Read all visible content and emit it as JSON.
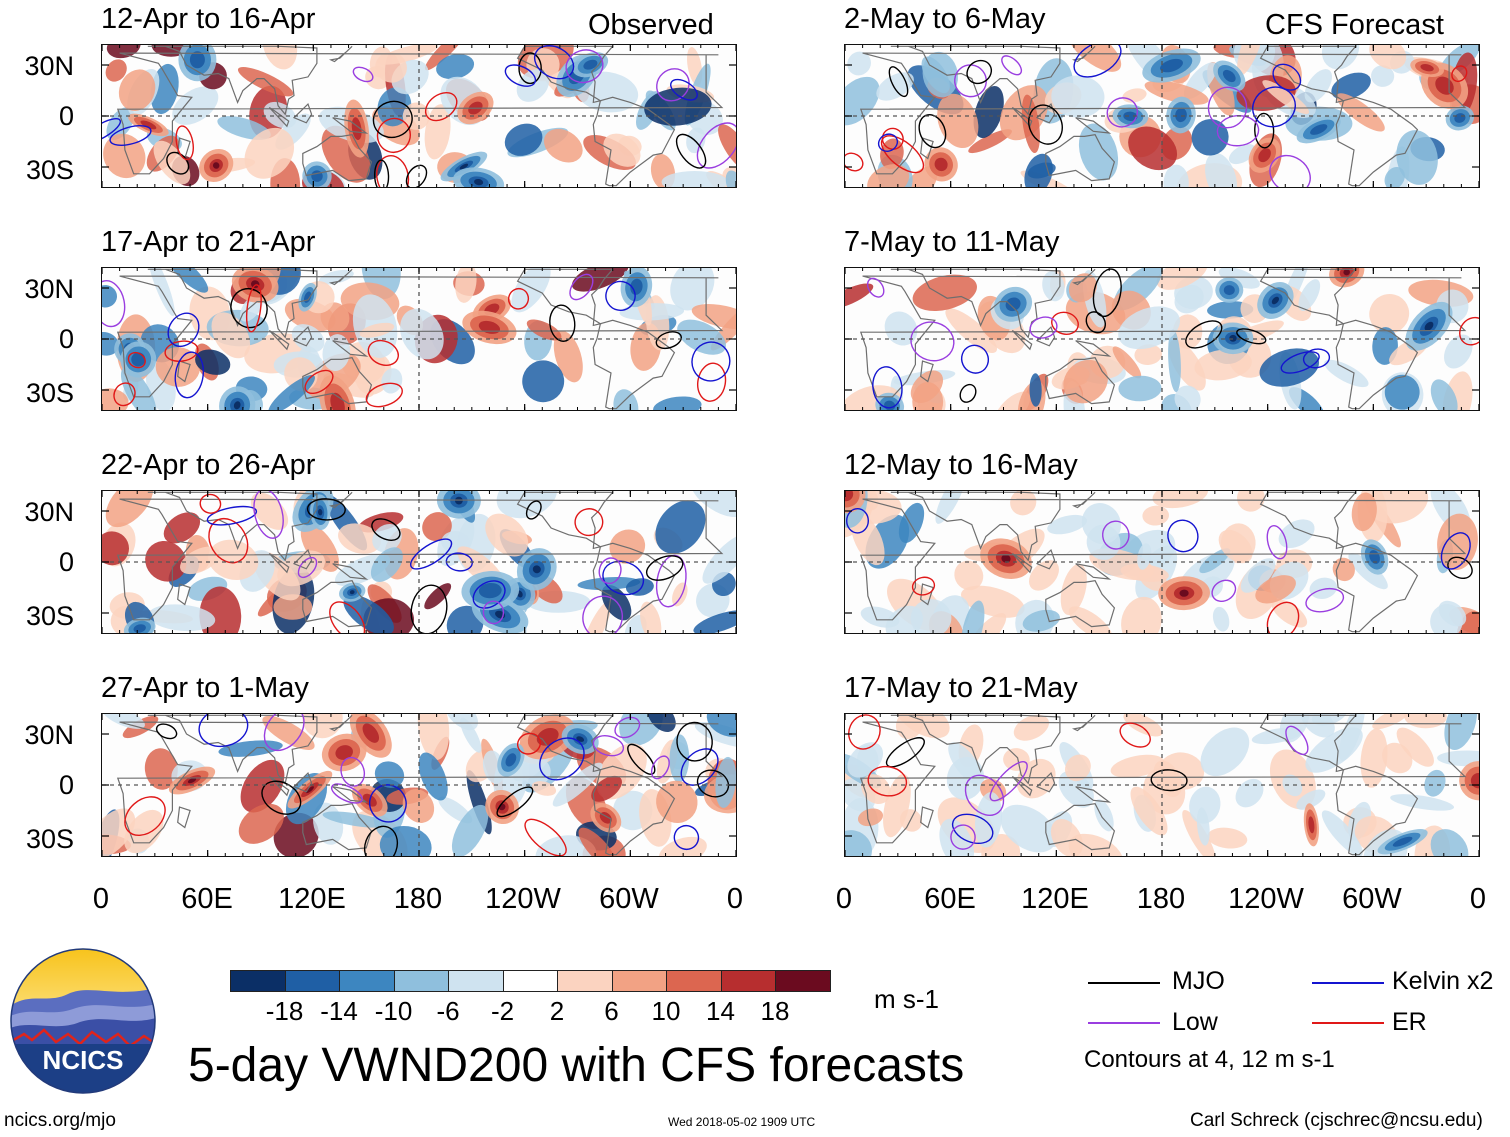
{
  "left_header": "Observed",
  "right_header": "CFS Forecast",
  "observed_panels": [
    {
      "title": "12-Apr to 16-Apr"
    },
    {
      "title": "17-Apr to 21-Apr"
    },
    {
      "title": "22-Apr to 26-Apr"
    },
    {
      "title": "27-Apr to 1-May"
    }
  ],
  "forecast_panels": [
    {
      "title": "2-May to 6-May"
    },
    {
      "title": "7-May to 11-May"
    },
    {
      "title": "12-May to 16-May"
    },
    {
      "title": "17-May to 21-May"
    }
  ],
  "lat_labels": [
    "30N",
    "0",
    "30S"
  ],
  "lon_labels": [
    "0",
    "60E",
    "120E",
    "180",
    "120W",
    "60W",
    "0"
  ],
  "colorbar": {
    "colors": [
      "#0b2f66",
      "#1f5fa5",
      "#3d86c0",
      "#8fbfdd",
      "#cfe3f0",
      "#ffffff",
      "#fbd3c0",
      "#f2a284",
      "#dc6650",
      "#b72e2f",
      "#6b0b1f"
    ],
    "ticks": [
      "-18",
      "-14",
      "-10",
      "-6",
      "-2",
      "2",
      "6",
      "10",
      "14",
      "18"
    ],
    "units": "m s-1"
  },
  "legend": {
    "items": [
      {
        "label": "MJO",
        "color": "#000000"
      },
      {
        "label": "Kelvin x2",
        "color": "#1414d0"
      },
      {
        "label": "Low",
        "color": "#9a3ee0"
      },
      {
        "label": "ER",
        "color": "#e01818"
      }
    ],
    "note": "Contours at 4, 12 m s-1"
  },
  "logo_text": "NCICS",
  "main_title": "5-day VWND200 with CFS forecasts",
  "footer": {
    "url": "ncics.org/mjo",
    "timestamp": "Wed 2018-05-02 1909 UTC",
    "author": "Carl Schreck (cjschrec@ncsu.edu)"
  }
}
